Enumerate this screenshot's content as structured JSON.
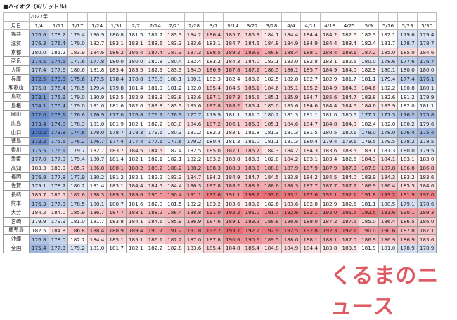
{
  "title": "■ハイオク（¥/リットル）",
  "header": {
    "corner": "月日",
    "year": "2022年",
    "dates": [
      "1/4",
      "1/11",
      "1/17",
      "1/24",
      "1/31",
      "2/7",
      "2/14",
      "2/21",
      "2/28",
      "3/7",
      "3/14",
      "3/22",
      "3/28",
      "4/4",
      "4/11",
      "4/18",
      "4/25",
      "5/9",
      "5/16",
      "5/23",
      "5/30"
    ]
  },
  "rows": [
    {
      "label": "福井",
      "values": [
        "176.6",
        "178.2",
        "179.4",
        "180.9",
        "180.8",
        "181.5",
        "181.7",
        "183.3",
        "184.2",
        "186.4",
        "185.7",
        "185.3",
        "184.1",
        "184.4",
        "184.4",
        "184.2",
        "182.6",
        "182.3",
        "182.1",
        "179.6",
        "179.4"
      ]
    },
    {
      "label": "滋賀",
      "values": [
        "176.3",
        "176.4",
        "179.0",
        "182.7",
        "183.1",
        "183.1",
        "183.6",
        "183.3",
        "183.6",
        "183.1",
        "184.7",
        "184.5",
        "184.8",
        "184.9",
        "184.9",
        "184.4",
        "183.4",
        "182.4",
        "181.7",
        "178.7",
        "178.7"
      ]
    },
    {
      "label": "京都",
      "values": [
        "180.0",
        "181.2",
        "183.9",
        "184.6",
        "186.2",
        "186.4",
        "187.4",
        "187.3",
        "187.3",
        "188.5",
        "189.2",
        "189.9",
        "188.8",
        "188.4",
        "188.1",
        "188.4",
        "188.1",
        "187.2",
        "185.0",
        "185.0",
        "184.6"
      ]
    },
    {
      "label": "奈良",
      "values": [
        "174.5",
        "174.5",
        "177.6",
        "177.8",
        "180.0",
        "180.0",
        "180.8",
        "180.4",
        "182.4",
        "183.2",
        "184.3",
        "184.0",
        "183.1",
        "183.0",
        "182.8",
        "183.1",
        "182.5",
        "180.0",
        "178.6",
        "177.6",
        "176.7"
      ]
    },
    {
      "label": "大阪",
      "values": [
        "177.4",
        "177.6",
        "180.6",
        "181.8",
        "183.4",
        "183.5",
        "182.9",
        "183.3",
        "184.5",
        "186.9",
        "187.8",
        "187.2",
        "186.5",
        "186.1",
        "185.7",
        "184.9",
        "184.0",
        "182.9",
        "180.1",
        "180.0",
        "180.0"
      ]
    },
    {
      "label": "兵庫",
      "values": [
        "172.5",
        "173.3",
        "175.6",
        "177.5",
        "178.4",
        "178.8",
        "178.8",
        "180.1",
        "180.1",
        "182.3",
        "182.4",
        "183.2",
        "182.5",
        "182.8",
        "182.7",
        "182.9",
        "181.7",
        "181.1",
        "179.4",
        "177.4",
        "176.1"
      ]
    },
    {
      "label": "和歌山",
      "values": [
        "176.8",
        "176.4",
        "178.5",
        "179.4",
        "179.8",
        "181.4",
        "181.9",
        "181.2",
        "182.0",
        "185.4",
        "184.5",
        "186.1",
        "184.6",
        "185.1",
        "185.2",
        "184.9",
        "184.8",
        "184.6",
        "182.2",
        "180.8",
        "180.1"
      ]
    },
    {
      "label": "鳥取",
      "values": [
        "173.1",
        "175.9",
        "179.0",
        "180.9",
        "182.5",
        "182.9",
        "183.3",
        "183.8",
        "183.6",
        "187.1",
        "187.3",
        "185.5",
        "185.1",
        "185.9",
        "184.7",
        "185.6",
        "184.7",
        "183.8",
        "182.6",
        "181.2",
        "179.9"
      ]
    },
    {
      "label": "島根",
      "values": [
        "174.1",
        "175.4",
        "179.0",
        "181.0",
        "181.6",
        "182.6",
        "183.8",
        "183.3",
        "183.6",
        "187.8",
        "188.2",
        "185.4",
        "185.0",
        "183.6",
        "184.6",
        "184.4",
        "184.6",
        "184.6",
        "183.9",
        "182.0",
        "181.1"
      ]
    },
    {
      "label": "岡山",
      "values": [
        "172.0",
        "173.1",
        "176.6",
        "176.9",
        "177.0",
        "176.8",
        "176.7",
        "176.9",
        "177.7",
        "179.9",
        "181.1",
        "181.0",
        "180.2",
        "181.3",
        "181.1",
        "181.0",
        "180.6",
        "177.7",
        "177.3",
        "176.2",
        "175.8"
      ]
    },
    {
      "label": "広島",
      "values": [
        "173.4",
        "174.8",
        "178.3",
        "181.0",
        "181.9",
        "182.1",
        "182.2",
        "183.0",
        "184.6",
        "187.2",
        "186.1",
        "186.3",
        "185.1",
        "184.6",
        "184.7",
        "184.8",
        "184.0",
        "182.4",
        "182.0",
        "180.2",
        "179.6"
      ]
    },
    {
      "label": "山口",
      "values": [
        "170.2",
        "173.8",
        "174.6",
        "178.0",
        "178.7",
        "178.3",
        "179.6",
        "180.3",
        "181.2",
        "182.3",
        "183.1",
        "181.8",
        "181.3",
        "181.3",
        "181.5",
        "180.5",
        "180.1",
        "178.0",
        "178.0",
        "176.4",
        "175.4"
      ]
    },
    {
      "label": "徳島",
      "values": [
        "172.2",
        "175.6",
        "176.2",
        "176.7",
        "177.4",
        "177.4",
        "177.6",
        "177.6",
        "179.2",
        "180.4",
        "181.3",
        "181.0",
        "181.1",
        "181.3",
        "180.4",
        "179.4",
        "179.1",
        "179.5",
        "179.5",
        "178.2",
        "178.5"
      ]
    },
    {
      "label": "香川",
      "values": [
        "175.5",
        "176.1",
        "179.7",
        "182.7",
        "183.7",
        "184.5",
        "184.5",
        "182.4",
        "182.5",
        "185.0",
        "187.1",
        "186.7",
        "184.3",
        "184.2",
        "184.3",
        "183.6",
        "183.5",
        "183.1",
        "181.3",
        "180.0",
        "179.5"
      ]
    },
    {
      "label": "愛媛",
      "values": [
        "177.0",
        "177.9",
        "179.4",
        "180.7",
        "181.4",
        "182.1",
        "182.1",
        "182.1",
        "182.2",
        "183.2",
        "183.8",
        "183.3",
        "182.8",
        "184.2",
        "183.1",
        "183.4",
        "182.5",
        "184.3",
        "184.1",
        "183.1",
        "183.0"
      ]
    },
    {
      "label": "高知",
      "values": [
        "183.3",
        "183.9",
        "185.7",
        "186.8",
        "188.1",
        "188.2",
        "188.2",
        "188.2",
        "188.2",
        "188.3",
        "188.3",
        "188.3",
        "188.0",
        "187.9",
        "187.9",
        "187.9",
        "187.9",
        "187.9",
        "187.8",
        "186.8",
        "186.8"
      ]
    },
    {
      "label": "福岡",
      "values": [
        "176.8",
        "177.8",
        "177.9",
        "180.2",
        "181.2",
        "182.1",
        "182.2",
        "183.3",
        "184.7",
        "184.2",
        "184.9",
        "184.7",
        "184.5",
        "183.8",
        "184.2",
        "184.5",
        "184.0",
        "183.9",
        "184.3",
        "183.2",
        "183.6"
      ]
    },
    {
      "label": "佐賀",
      "values": [
        "179.1",
        "178.7",
        "180.2",
        "181.4",
        "183.1",
        "184.4",
        "184.5",
        "184.4",
        "186.3",
        "187.8",
        "188.2",
        "188.9",
        "188.6",
        "188.3",
        "187.7",
        "187.7",
        "187.7",
        "186.9",
        "186.4",
        "185.5",
        "184.6"
      ]
    },
    {
      "label": "長崎",
      "values": [
        "185.7",
        "185.5",
        "187.6",
        "188.3",
        "189.3",
        "189.6",
        "190.0",
        "190.4",
        "191.1",
        "192.6",
        "191.1",
        "193.2",
        "193.6",
        "193.1",
        "192.6",
        "192.1",
        "192.1",
        "191.8",
        "193.2",
        "191.9",
        "192.0"
      ]
    },
    {
      "label": "熊本",
      "values": [
        "176.3",
        "177.3",
        "178.5",
        "180.1",
        "180.7",
        "181.6",
        "182.0",
        "181.5",
        "182.2",
        "183.2",
        "183.6",
        "183.2",
        "182.6",
        "183.6",
        "182.8",
        "182.9",
        "182.5",
        "181.1",
        "180.5",
        "179.1",
        "178.6"
      ]
    },
    {
      "label": "大分",
      "values": [
        "184.2",
        "184.0",
        "185.9",
        "186.7",
        "187.7",
        "188.1",
        "188.2",
        "188.4",
        "188.8",
        "191.0",
        "192.2",
        "191.0",
        "191.7",
        "192.6",
        "192.1",
        "192.0",
        "191.6",
        "192.5",
        "191.6",
        "190.1",
        "189.3"
      ]
    },
    {
      "label": "宮崎",
      "values": [
        "179.9",
        "179.9",
        "181.0",
        "181.7",
        "183.8",
        "184.1",
        "184.6",
        "185.9",
        "186.9",
        "187.6",
        "189.1",
        "189.2",
        "188.8",
        "188.6",
        "188.0",
        "187.2",
        "187.5",
        "185.0",
        "186.4",
        "186.5",
        "186.0"
      ]
    },
    {
      "label": "鹿児島",
      "values": [
        "182.5",
        "184.8",
        "186.8",
        "188.4",
        "188.9",
        "189.4",
        "190.7",
        "191.2",
        "191.8",
        "192.7",
        "193.7",
        "192.2",
        "192.9",
        "192.5",
        "192.8",
        "192.3",
        "192.1",
        "190.0",
        "190.6",
        "187.8",
        "187.1"
      ]
    },
    {
      "label": "沖縄",
      "values": [
        "176.8",
        "178.0",
        "182.7",
        "184.4",
        "185.1",
        "185.1",
        "186.1",
        "187.2",
        "187.0",
        "187.8",
        "190.6",
        "190.6",
        "189.5",
        "188.0",
        "188.1",
        "188.1",
        "187.0",
        "186.9",
        "186.9",
        "186.9",
        "185.6"
      ]
    },
    {
      "label": "全国",
      "values": [
        "175.4",
        "177.3",
        "179.2",
        "181.0",
        "181.7",
        "182.1",
        "182.2",
        "182.8",
        "183.6",
        "185.4",
        "184.8",
        "185.4",
        "184.8",
        "184.9",
        "184.4",
        "183.8",
        "183.6",
        "181.9",
        "181.0",
        "178.9",
        "178.9"
      ]
    }
  ],
  "color_scale": {
    "low": "#4f79c2",
    "mid": "#ffffff",
    "high": "#e86a72"
  },
  "logo": "くるまのニュース"
}
